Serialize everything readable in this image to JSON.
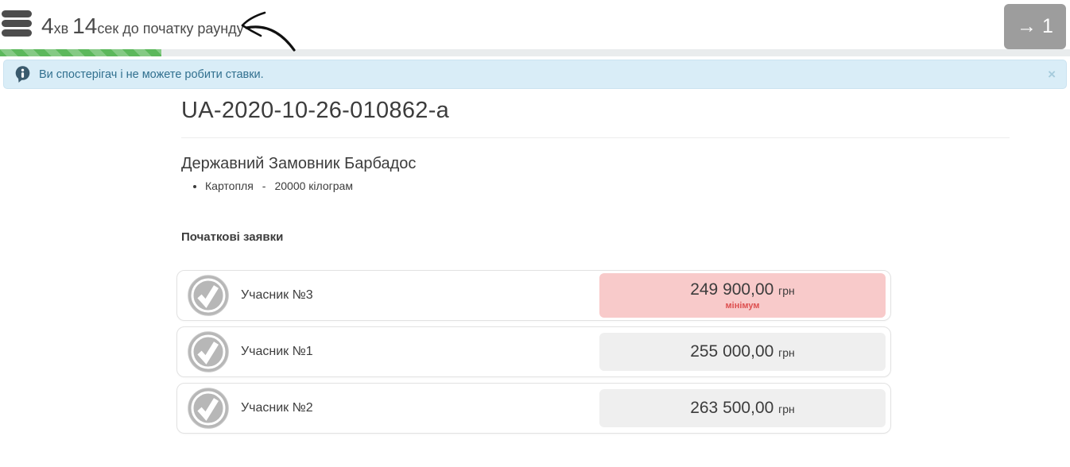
{
  "header": {
    "timer": {
      "minutes": "4",
      "minutes_unit": "хв ",
      "seconds": "14",
      "seconds_unit_suffix": "сек до початку раунду"
    },
    "round_nav": {
      "arrow": "→",
      "number": "1"
    }
  },
  "progress": {
    "percent": 15.1
  },
  "banner": {
    "text": "Ви спостерігач і не можете робити ставки.",
    "close_icon": "×"
  },
  "auction": {
    "tender_id": "UA-2020-10-26-010862-a",
    "buyer": "Державний Замовник Барбадос",
    "item": {
      "name": "Картопля",
      "separator": "-",
      "quantity": "20000 кілограм"
    },
    "section_title": "Початкові заявки"
  },
  "bids": {
    "rows": [
      {
        "participant": "Учасник №3",
        "amount": "249 900,00",
        "currency": "грн",
        "note": "мінімум"
      },
      {
        "participant": "Учасник №1",
        "amount": "255 000,00",
        "currency": "грн"
      },
      {
        "participant": "Учасник №2",
        "amount": "263 500,00",
        "currency": "грн"
      }
    ]
  },
  "colors": {
    "progress_green": "#5cb85c",
    "banner_bg": "#d9edf7",
    "banner_text": "#31708f",
    "highlight_pink": "#f8caca",
    "minimum_red": "#dd5050",
    "round_btn_gray": "#9d9d9d"
  }
}
